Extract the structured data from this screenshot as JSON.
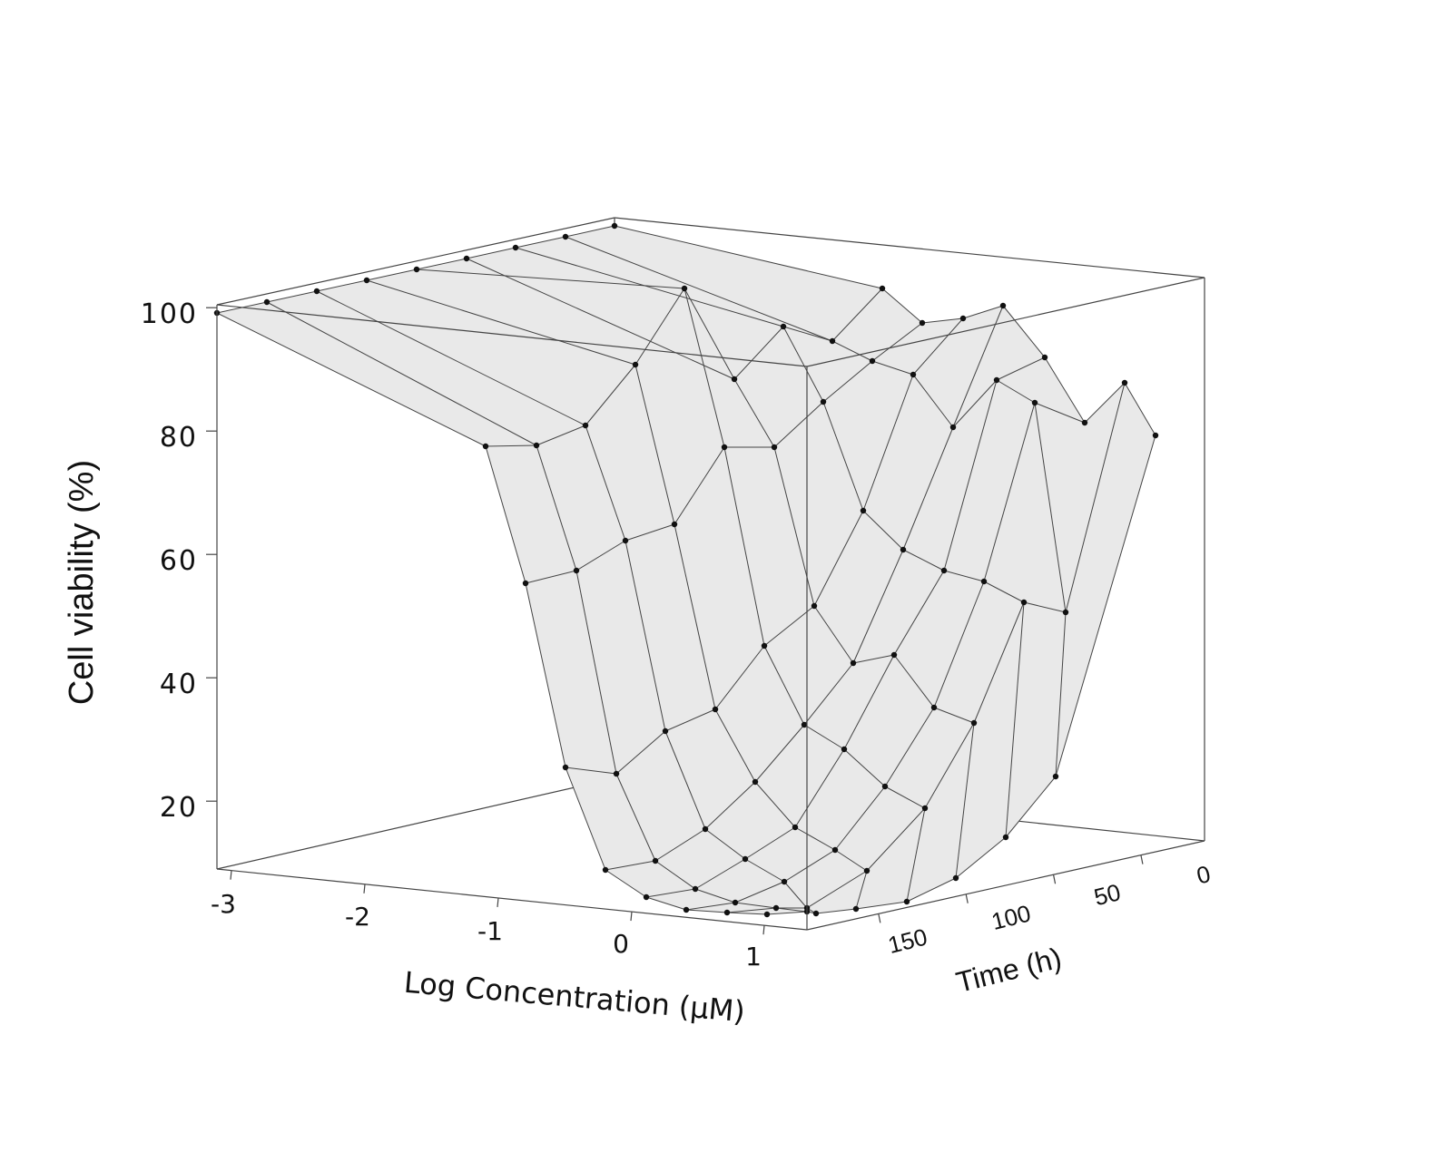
{
  "chart_data": {
    "type": "surface",
    "title": "",
    "zlabel": "Cell viability (%)",
    "xlabel": "Log Concentration (μM)",
    "ylabel": "Time (h)",
    "z_ticks": [
      "100",
      "80",
      "60",
      "40",
      "20"
    ],
    "x_ticks": [
      "-3",
      "-2",
      "-1",
      "0",
      "1"
    ],
    "y_ticks": [
      "150",
      "100",
      "50",
      "0"
    ],
    "log_concentration": [
      -3,
      -2,
      -1,
      -0.5,
      0,
      0.5,
      1,
      1.5,
      2
    ],
    "time_h": [
      0,
      24,
      48,
      72,
      96,
      120,
      144,
      168
    ],
    "surface_color": "#e9e9e9",
    "line_color": "#333333",
    "marker_color": "#111111"
  }
}
